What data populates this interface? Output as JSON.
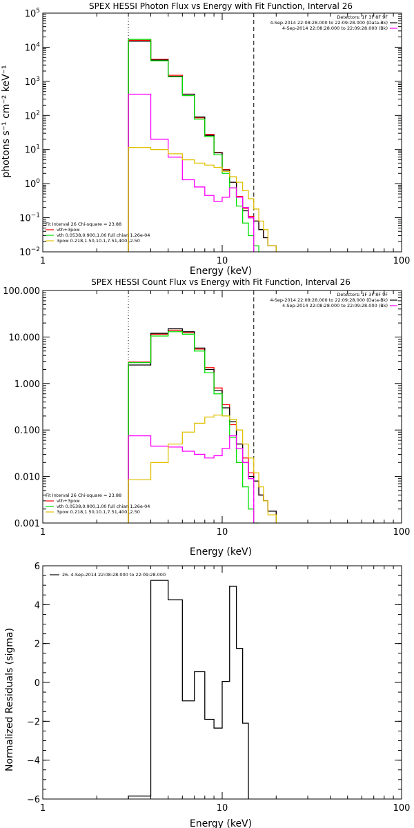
{
  "chart_data": [
    {
      "type": "line",
      "title": "SPEX HESSI Photon Flux vs Energy with Fit Function, Interval 26",
      "xlabel": "Energy (keV)",
      "ylabel": "photons s⁻¹ cm⁻² keV⁻¹",
      "xscale": "log",
      "yscale": "log",
      "xlim": [
        1,
        100
      ],
      "ylim": [
        0.01,
        100000
      ],
      "xticks": [
        {
          "v": 1,
          "label": "1"
        },
        {
          "v": 10,
          "label": "10"
        },
        {
          "v": 100,
          "label": "100"
        }
      ],
      "yticks": [
        {
          "v": 0.01,
          "base": "10",
          "exp": "−2"
        },
        {
          "v": 0.1,
          "base": "10",
          "exp": "−1"
        },
        {
          "v": 1,
          "base": "10",
          "exp": "0"
        },
        {
          "v": 10,
          "base": "10",
          "exp": "1"
        },
        {
          "v": 100,
          "base": "10",
          "exp": "2"
        },
        {
          "v": 1000,
          "base": "10",
          "exp": "3"
        },
        {
          "v": 10000,
          "base": "10",
          "exp": "4"
        },
        {
          "v": 100000,
          "base": "10",
          "exp": "5"
        }
      ],
      "vlines": [
        {
          "x": 3,
          "style": "dotted"
        },
        {
          "x": 15,
          "style": "dashed"
        }
      ],
      "legend_top": {
        "position": "top-right",
        "header": "Detectors: 1F 3F 8F 9F",
        "entries": [
          {
            "text": "4-Sep-2014 22:08:28.000 to 22:09:28.000 (Data-Bk)",
            "color": "#000000"
          },
          {
            "text": "4-Sep-2014 22:08:28.000 to 22:09:28.000 (Bk)",
            "color": "#ff00ff"
          }
        ]
      },
      "legend_fit": {
        "position": "bottom-left",
        "header": "Fit Interval 26   Chi-square = 23.88",
        "entries": [
          {
            "text": "vth+3pow",
            "color": "#ff0000"
          },
          {
            "text": "vth 0.0538,0.900,1.00   full chian 1.26e-04",
            "color": "#00e000"
          },
          {
            "text": "3pow 0.218,1.50,10.1,7.51,400.,2.50",
            "color": "#e0c000"
          }
        ]
      },
      "edges": [
        3.0,
        4.0,
        5.0,
        6.0,
        7.0,
        8.0,
        9.0,
        10.0,
        11.0,
        12.0,
        13.0,
        14.0,
        15.0,
        16.0,
        17.0,
        18.0,
        20.0
      ],
      "series": [
        {
          "color": "#ff0000",
          "values": [
            16000,
            4400,
            1500,
            420,
            85,
            28,
            8.2,
            2.6,
            1.1,
            0.42,
            0.19,
            0.11,
            0.08,
            0.045,
            0.026,
            0.015
          ]
        },
        {
          "color": "#000000",
          "values": [
            15000,
            4200,
            1400,
            420,
            90,
            26,
            8.0,
            2.5,
            1.1,
            0.4,
            0.16,
            0.1,
            0.08,
            0.045,
            0.026,
            0.015
          ]
        },
        {
          "color": "#00e000",
          "values": [
            17000,
            4000,
            1350,
            380,
            78,
            24,
            7.0,
            2.0,
            0.75,
            0.22,
            0.07,
            0.03,
            0.015
          ]
        },
        {
          "color": "#ff00ff",
          "values": [
            420,
            20,
            6.0,
            1.3,
            0.8,
            0.45,
            0.3,
            0.4,
            0.75,
            0.4,
            0.2,
            0.1
          ]
        },
        {
          "color": "#e0c000",
          "values": [
            11.5,
            10.0,
            7.5,
            5.0,
            4.0,
            3.5,
            3.0,
            2.3,
            1.6,
            1.1,
            0.62,
            0.36,
            0.18,
            0.08,
            0.045,
            0.015
          ]
        }
      ]
    },
    {
      "type": "line",
      "title": "SPEX HESSI Count Flux vs Energy with Fit Function, Interval 26",
      "xlabel": "Energy (keV)",
      "ylabel": "",
      "xscale": "log",
      "yscale": "log",
      "xlim": [
        1,
        100
      ],
      "ylim": [
        0.001,
        100
      ],
      "xticks": [
        {
          "v": 1,
          "label": "1"
        },
        {
          "v": 10,
          "label": "10"
        },
        {
          "v": 100,
          "label": "100"
        }
      ],
      "yticks": [
        {
          "v": 0.001,
          "label": "0.001"
        },
        {
          "v": 0.01,
          "label": "0.010"
        },
        {
          "v": 0.1,
          "label": "0.100"
        },
        {
          "v": 1,
          "label": "1.000"
        },
        {
          "v": 10,
          "label": "10.000"
        },
        {
          "v": 100,
          "label": "100.000"
        }
      ],
      "vlines": [
        {
          "x": 3,
          "style": "dotted"
        },
        {
          "x": 15,
          "style": "dashed"
        }
      ],
      "legend_top": {
        "position": "top-right",
        "header": "Detectors: 1F 3F 8F 9F",
        "entries": [
          {
            "text": "4-Sep-2014 22:08:28.000 to 22:09:28.000 (Data-Bk)",
            "color": "#000000"
          },
          {
            "text": "4-Sep-2014 22:08:28.000 to 22:09:28.000 (Bk)",
            "color": "#ff00ff"
          }
        ]
      },
      "legend_fit": {
        "position": "bottom-left",
        "header": "Fit Interval 26   Chi-square = 23.88",
        "entries": [
          {
            "text": "vth+3pow",
            "color": "#ff0000"
          },
          {
            "text": "vth 0.0538,0.900,1.00   full chian 1.26e-04",
            "color": "#00e000"
          },
          {
            "text": "3pow 0.218,1.50,10.1,7.51,400.,2.50",
            "color": "#e0c000"
          }
        ]
      },
      "edges": [
        3.0,
        4.0,
        5.0,
        6.0,
        7.0,
        8.0,
        9.0,
        10.0,
        11.0,
        12.0,
        13.0,
        14.0,
        15.0,
        16.0,
        17.0,
        18.0,
        20.0
      ],
      "series": [
        {
          "color": "#ff0000",
          "values": [
            2.9,
            11.5,
            14.0,
            12.5,
            5.5,
            2.2,
            0.8,
            0.35,
            0.13,
            0.05,
            0.025,
            0.012,
            0.008,
            0.004,
            0.003,
            0.0018
          ]
        },
        {
          "color": "#000000",
          "values": [
            2.5,
            12.0,
            15.0,
            13.0,
            5.8,
            2.0,
            0.7,
            0.3,
            0.15,
            0.05,
            0.02,
            0.01,
            0.008,
            0.004,
            0.003,
            0.0018
          ]
        },
        {
          "color": "#00e000",
          "values": [
            2.8,
            10.5,
            13.0,
            11.5,
            5.0,
            1.7,
            0.6,
            0.2,
            0.07,
            0.02,
            0.006,
            0.002,
            0.001
          ]
        },
        {
          "color": "#ff00ff",
          "values": [
            0.075,
            0.045,
            0.043,
            0.035,
            0.03,
            0.025,
            0.028,
            0.04,
            0.075,
            0.04,
            0.02,
            0.009
          ]
        },
        {
          "color": "#e0c000",
          "values": [
            0.0085,
            0.02,
            0.05,
            0.09,
            0.14,
            0.19,
            0.21,
            0.2,
            0.17,
            0.1,
            0.05,
            0.025,
            0.012,
            0.006,
            0.003,
            0.0015
          ]
        }
      ]
    },
    {
      "type": "line",
      "title": "",
      "xlabel": "Energy (keV)",
      "ylabel": "Normalized Residuals (sigma)",
      "xscale": "log",
      "yscale": "linear",
      "xlim": [
        1,
        100
      ],
      "ylim": [
        -6,
        6
      ],
      "xticks": [
        {
          "v": 1,
          "label": "1"
        },
        {
          "v": 10,
          "label": "10"
        },
        {
          "v": 100,
          "label": "100"
        }
      ],
      "yticks": [
        {
          "v": -6,
          "label": "−6"
        },
        {
          "v": -4,
          "label": "−4"
        },
        {
          "v": -2,
          "label": "−2"
        },
        {
          "v": 0,
          "label": "0"
        },
        {
          "v": 2,
          "label": "2"
        },
        {
          "v": 4,
          "label": "4"
        },
        {
          "v": 6,
          "label": "6"
        }
      ],
      "vlines": [],
      "legend_top": {
        "position": "top-left",
        "header": "",
        "entries": [
          {
            "text": "26.  4-Sep-2014 22:08:28.000 to 22:09:28.000",
            "color": "#000000"
          }
        ]
      },
      "legend_fit": null,
      "edges": [
        3.0,
        4.0,
        5.0,
        6.0,
        7.0,
        8.0,
        9.0,
        10.0,
        11.0,
        12.0,
        13.0,
        14.0,
        15.0
      ],
      "series": [
        {
          "color": "#000000",
          "values": [
            -5.85,
            5.25,
            4.25,
            -0.95,
            0.55,
            -1.9,
            -2.35,
            0.05,
            4.95,
            1.75,
            -2.1
          ]
        }
      ]
    }
  ]
}
